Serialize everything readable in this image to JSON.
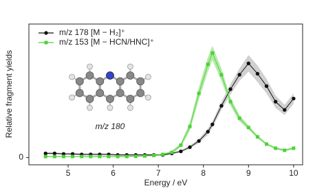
{
  "chart_data": {
    "type": "line",
    "x_label": "Energy / eV",
    "y_label": "Relative fragment yields",
    "annotation": "m/z 180",
    "x": [
      4.5,
      4.7,
      4.9,
      5.1,
      5.3,
      5.5,
      5.7,
      5.9,
      6.1,
      6.3,
      6.5,
      6.7,
      6.9,
      7.1,
      7.3,
      7.5,
      7.7,
      7.9,
      8.1,
      8.2,
      8.4,
      8.6,
      8.8,
      9.0,
      9.2,
      9.4,
      9.6,
      9.8,
      10.0
    ],
    "series": [
      {
        "name": "m/z 178 [M − H₂]⁺",
        "color": "#111111",
        "band_color": "#c8c8c8",
        "marker": "circle",
        "values": [
          0.04,
          0.04,
          0.035,
          0.035,
          0.03,
          0.03,
          0.03,
          0.03,
          0.025,
          0.025,
          0.025,
          0.025,
          0.025,
          0.025,
          0.04,
          0.06,
          0.1,
          0.16,
          0.25,
          0.32,
          0.5,
          0.66,
          0.8,
          0.91,
          0.81,
          0.69,
          0.54,
          0.46,
          0.57
        ],
        "errors": [
          0.01,
          0.01,
          0.01,
          0.01,
          0.01,
          0.01,
          0.01,
          0.01,
          0.01,
          0.01,
          0.01,
          0.01,
          0.01,
          0.01,
          0.01,
          0.01,
          0.015,
          0.02,
          0.03,
          0.03,
          0.04,
          0.05,
          0.06,
          0.08,
          0.08,
          0.07,
          0.06,
          0.05,
          0.05
        ]
      },
      {
        "name": "m/z 153 [M − HCN/HNC]⁺",
        "color": "#4fd13a",
        "band_color": "#a8e89a",
        "marker": "square",
        "values": [
          0.01,
          0.01,
          0.01,
          0.01,
          0.01,
          0.01,
          0.01,
          0.01,
          0.01,
          0.01,
          0.012,
          0.015,
          0.02,
          0.03,
          0.05,
          0.12,
          0.3,
          0.62,
          0.9,
          1.01,
          0.8,
          0.54,
          0.38,
          0.29,
          0.2,
          0.13,
          0.09,
          0.07,
          0.09
        ],
        "errors": [
          0.005,
          0.005,
          0.005,
          0.005,
          0.005,
          0.005,
          0.005,
          0.005,
          0.005,
          0.005,
          0.005,
          0.005,
          0.008,
          0.01,
          0.015,
          0.02,
          0.04,
          0.06,
          0.07,
          0.07,
          0.06,
          0.04,
          0.03,
          0.02,
          0.015,
          0.01,
          0.01,
          0.01,
          0.01
        ]
      }
    ],
    "xlim": [
      4.13,
      10.2
    ],
    "ylim": [
      -0.07,
      1.29
    ],
    "xticks": [
      5,
      6,
      7,
      8,
      9,
      10
    ],
    "yticks": [
      0
    ],
    "legend": "upper left",
    "grid": false
  }
}
